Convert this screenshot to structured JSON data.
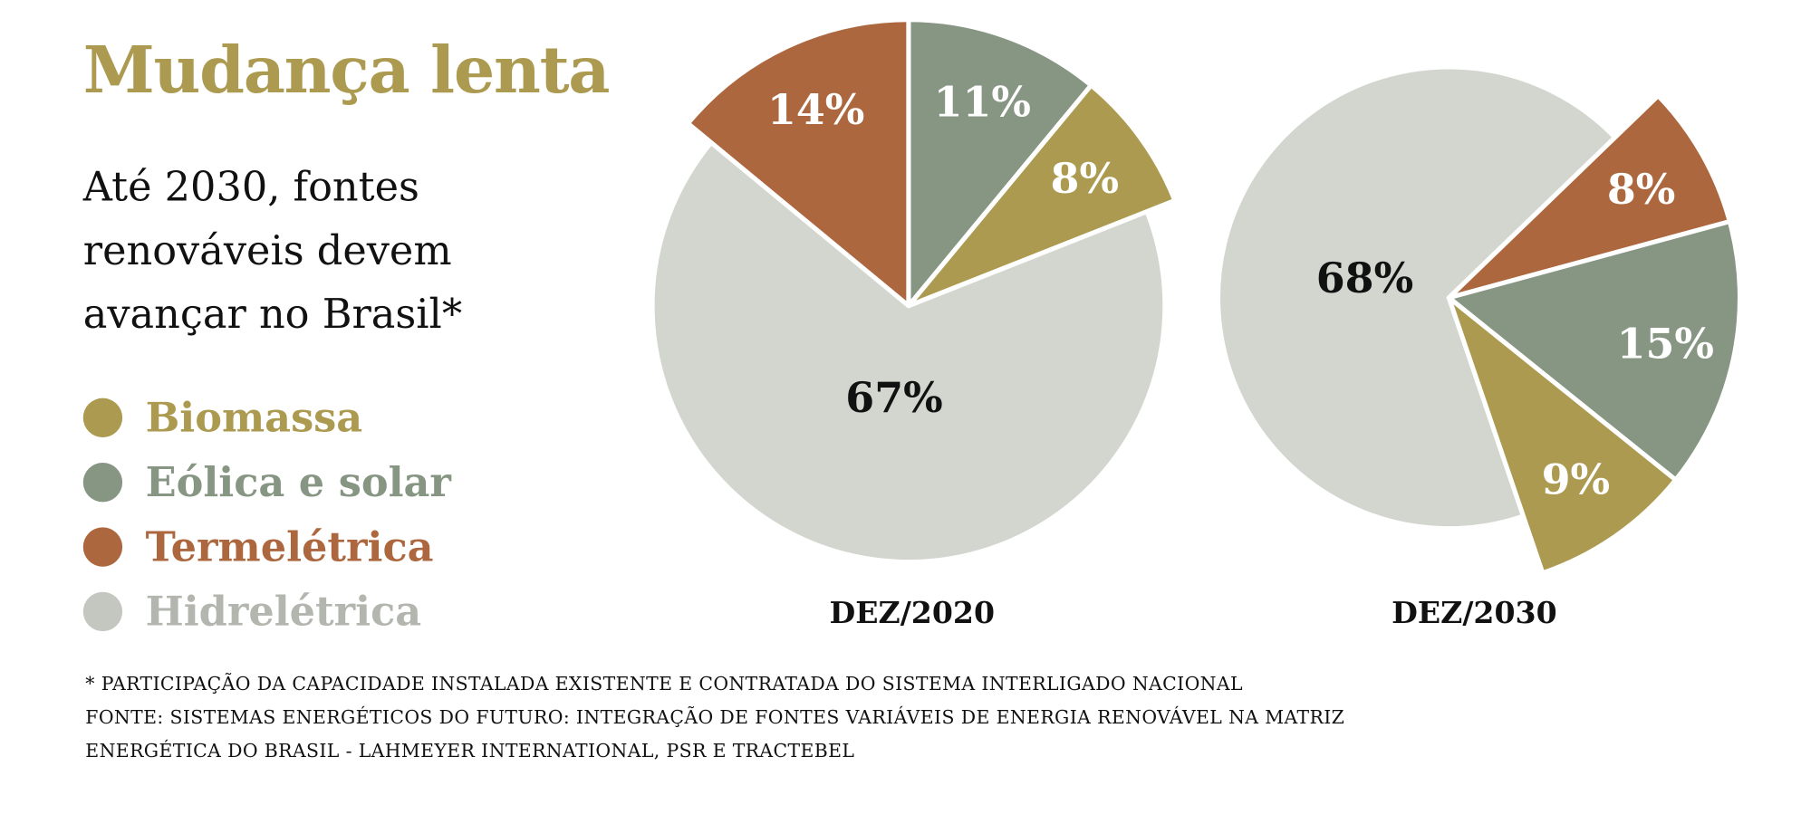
{
  "title": "Mudança lenta",
  "subtitle": "Até 2030, fontes renováveis devem avançar no Brasil*",
  "legend": [
    {
      "label": "Biomassa",
      "color": "#ab9a4f",
      "text_color": "#ab9a4f"
    },
    {
      "label": "Eólica e solar",
      "color": "#879583",
      "text_color": "#879583"
    },
    {
      "label": "Termelétrica",
      "color": "#ad673e",
      "text_color": "#ad673e"
    },
    {
      "label": "Hidrelétrica",
      "color": "#c4c7bf",
      "text_color": "#b3b6ae"
    }
  ],
  "chart_data": [
    {
      "type": "pie",
      "title": "DEZ/2020",
      "slices": [
        {
          "category": "Termelétrica",
          "value": 14,
          "label": "14%",
          "color": "#ad673e"
        },
        {
          "category": "Eólica e solar",
          "value": 11,
          "label": "11%",
          "color": "#879583"
        },
        {
          "category": "Biomassa",
          "value": 8,
          "label": "8%",
          "color": "#ab9a4f"
        },
        {
          "category": "Hidrelétrica",
          "value": 67,
          "label": "67%",
          "color": "#d3d6cf"
        }
      ]
    },
    {
      "type": "pie",
      "title": "DEZ/2030",
      "slices": [
        {
          "category": "Termelétrica",
          "value": 8,
          "label": "8%",
          "color": "#ad673e"
        },
        {
          "category": "Eólica e solar",
          "value": 15,
          "label": "15%",
          "color": "#879583"
        },
        {
          "category": "Biomassa",
          "value": 9,
          "label": "9%",
          "color": "#ab9a4f"
        },
        {
          "category": "Hidrelétrica",
          "value": 68,
          "label": "68%",
          "color": "#d3d6cf"
        }
      ]
    }
  ],
  "notes": [
    "* PARTICIPAÇÃO DA CAPACIDADE INSTALADA EXISTENTE E CONTRATADA DO SISTEMA INTERLIGADO NACIONAL",
    "FONTE: SISTEMAS ENERGÉTICOS DO FUTURO: INTEGRAÇÃO DE FONTES VARIÁVEIS DE ENERGIA RENOVÁVEL NA MATRIZ",
    "ENERGÉTICA DO BRASIL - LAHMEYER INTERNATIONAL, PSR E TRACTEBEL"
  ]
}
